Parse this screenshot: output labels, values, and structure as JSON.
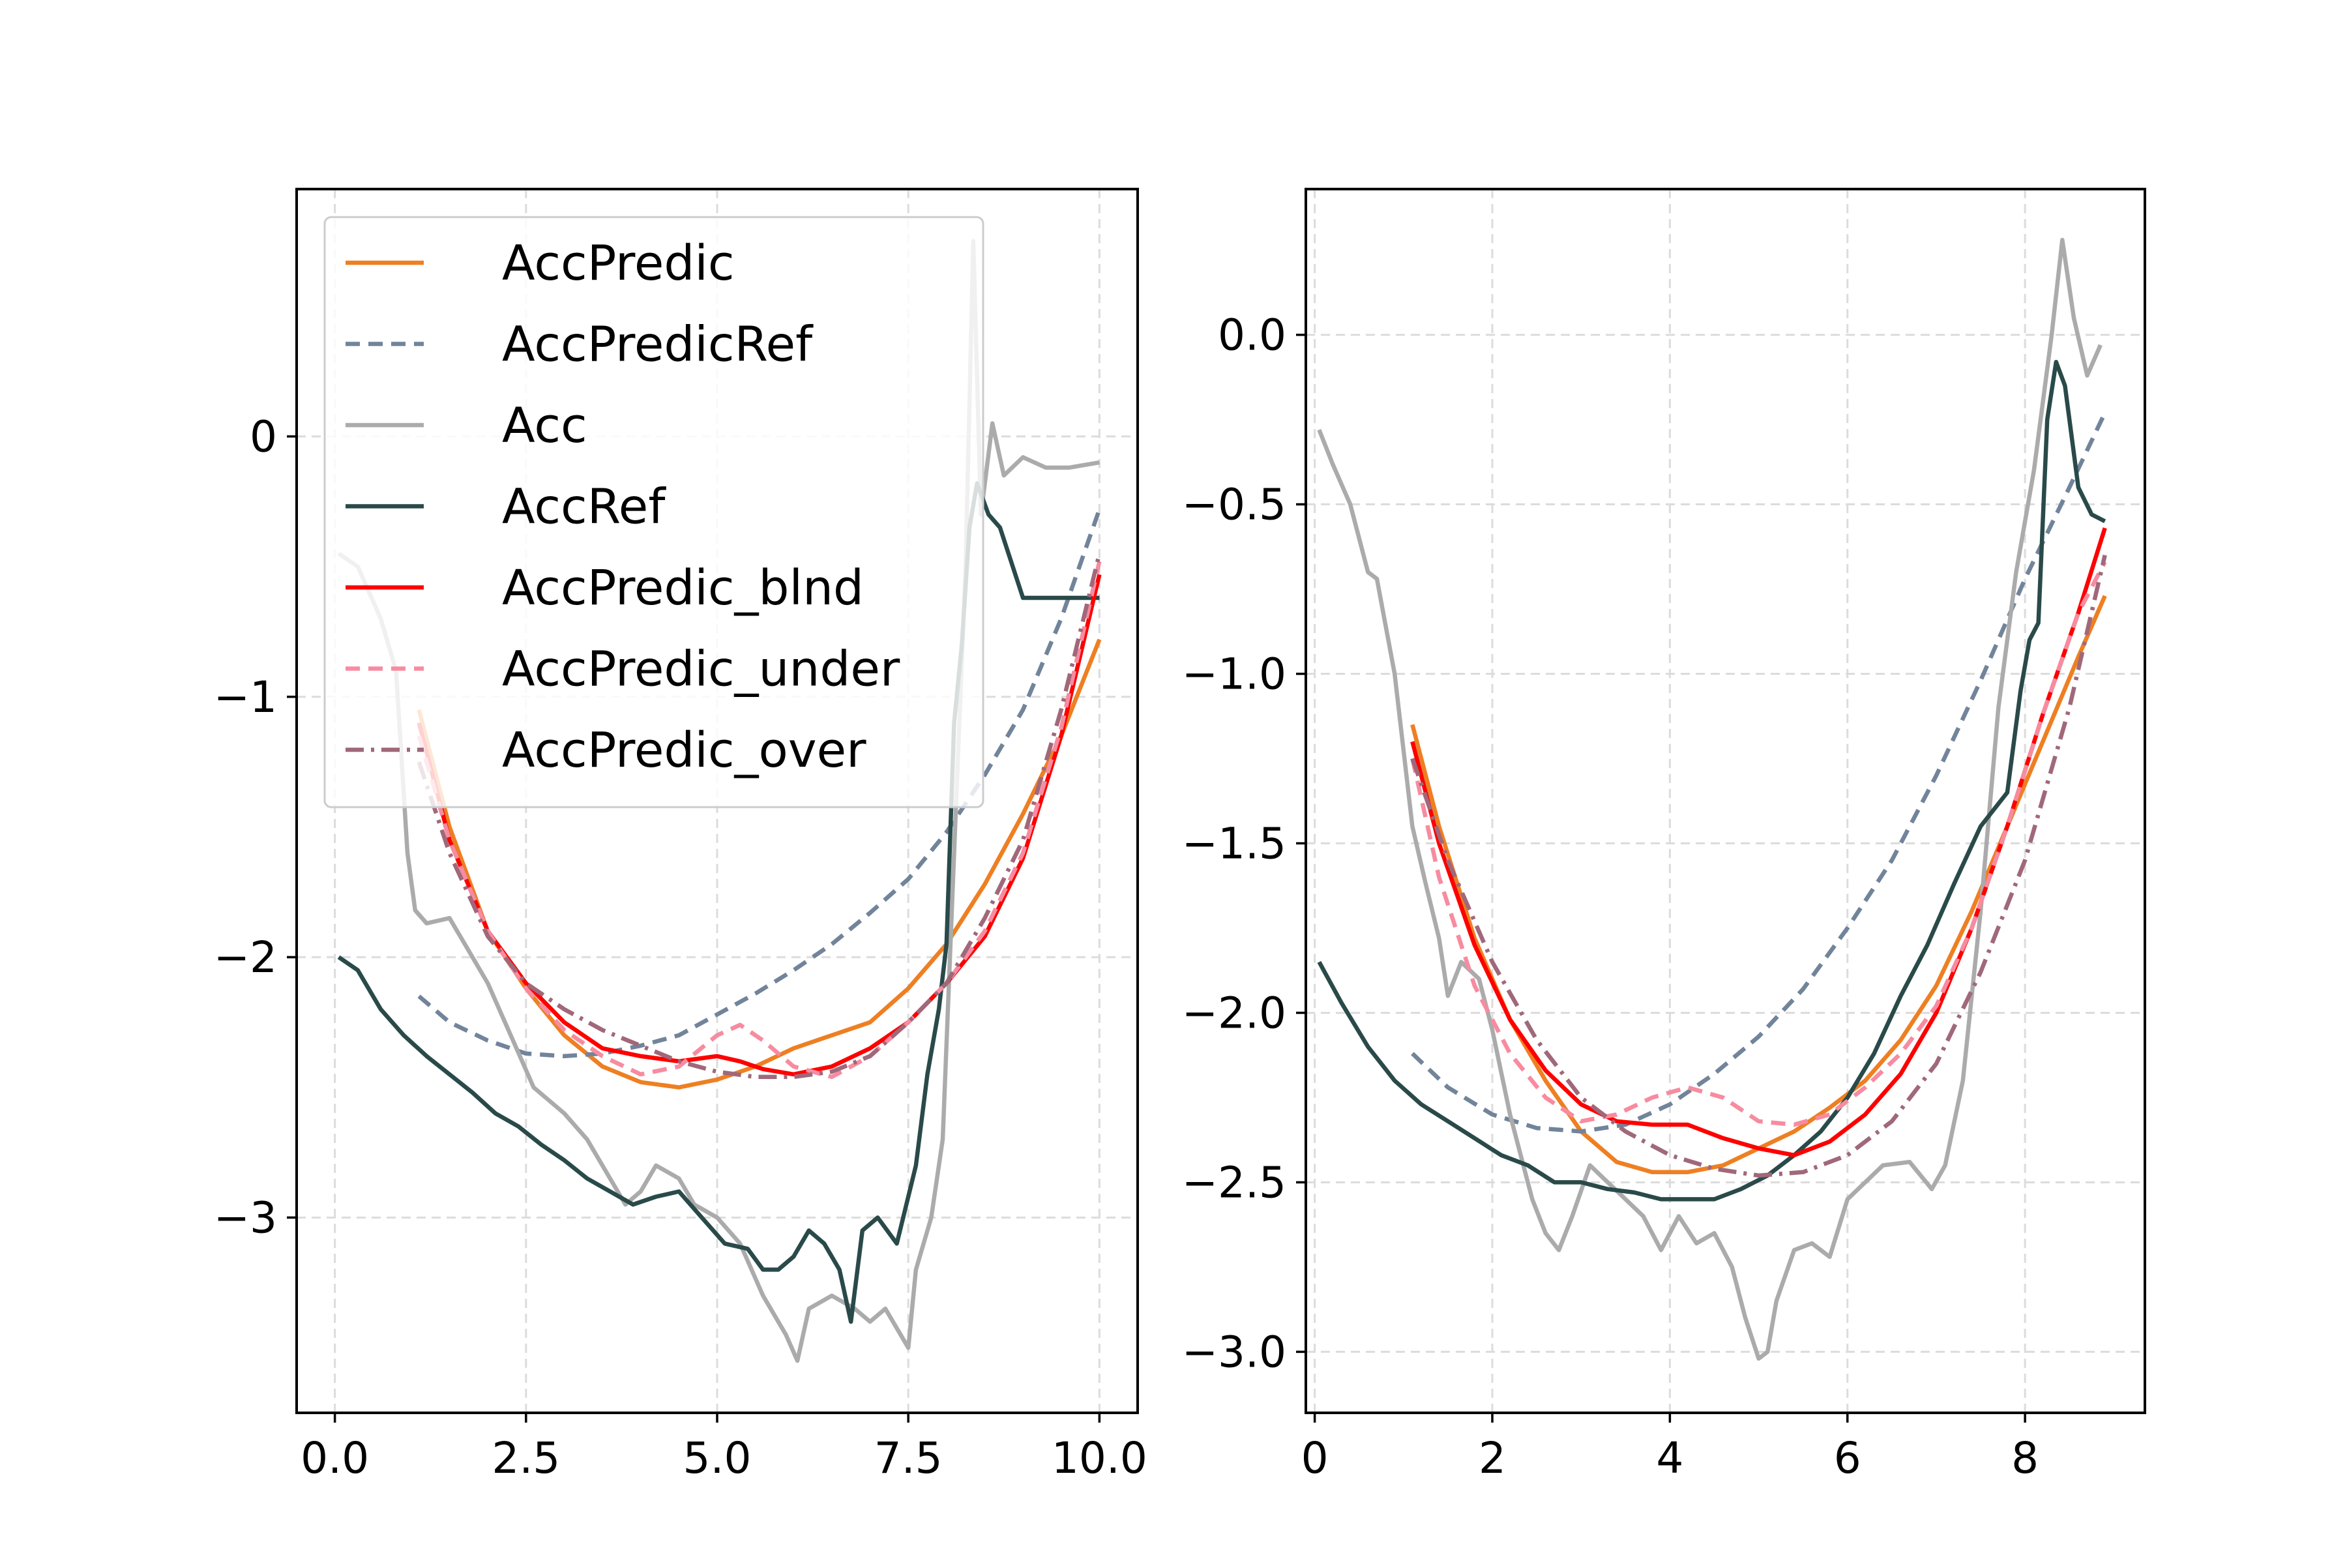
{
  "chart_data": [
    {
      "type": "line",
      "xlim": [
        -0.5,
        10.5
      ],
      "ylim": [
        -3.75,
        0.95
      ],
      "xticks": [
        0.0,
        2.5,
        5.0,
        7.5,
        10.0
      ],
      "xtick_labels": [
        "0.0",
        "2.5",
        "5.0",
        "7.5",
        "10.0"
      ],
      "yticks": [
        0,
        -1,
        -2,
        -3
      ],
      "ytick_labels": [
        "0",
        "−1",
        "−2",
        "−3"
      ],
      "grid": true,
      "legend": {
        "location": "top-left",
        "entries": [
          "AccPredic",
          "AccPredicRef",
          "Acc",
          "AccRef",
          "AccPredic_blnd",
          "AccPredic_under",
          "AccPredic_over"
        ]
      },
      "series": [
        {
          "name": "AccPredic",
          "color": "#ee7f22",
          "style": "solid",
          "x": [
            1.1,
            1.5,
            2.0,
            2.5,
            3.0,
            3.5,
            4.0,
            4.5,
            5.0,
            5.5,
            6.0,
            6.5,
            7.0,
            7.5,
            8.0,
            8.5,
            9.0,
            9.5,
            10.0
          ],
          "y": [
            -1.05,
            -1.5,
            -1.9,
            -2.12,
            -2.3,
            -2.42,
            -2.48,
            -2.5,
            -2.47,
            -2.42,
            -2.35,
            -2.3,
            -2.25,
            -2.12,
            -1.95,
            -1.72,
            -1.45,
            -1.15,
            -0.78
          ]
        },
        {
          "name": "AccPredicRef",
          "color": "#71849a",
          "style": "dashed",
          "x": [
            1.1,
            1.5,
            2.0,
            2.5,
            3.0,
            3.5,
            4.0,
            4.5,
            5.0,
            5.5,
            6.0,
            6.5,
            7.0,
            7.5,
            8.0,
            8.5,
            9.0,
            9.5,
            10.0
          ],
          "y": [
            -2.15,
            -2.25,
            -2.32,
            -2.37,
            -2.38,
            -2.37,
            -2.34,
            -2.3,
            -2.22,
            -2.14,
            -2.05,
            -1.95,
            -1.83,
            -1.7,
            -1.52,
            -1.3,
            -1.05,
            -0.7,
            -0.28
          ]
        },
        {
          "name": "Acc",
          "color": "#ababab",
          "style": "solid",
          "x": [
            0.05,
            0.3,
            0.6,
            0.8,
            0.95,
            1.05,
            1.2,
            1.5,
            1.7,
            2.0,
            2.3,
            2.6,
            3.0,
            3.3,
            3.6,
            3.8,
            4.0,
            4.2,
            4.5,
            4.7,
            5.0,
            5.3,
            5.6,
            5.9,
            6.05,
            6.2,
            6.5,
            6.8,
            7.0,
            7.2,
            7.5,
            7.6,
            7.8,
            7.95,
            8.1,
            8.25,
            8.35,
            8.45,
            8.6,
            8.75,
            9.0,
            9.3,
            9.6,
            10.0
          ],
          "y": [
            -0.45,
            -0.5,
            -0.7,
            -0.9,
            -1.6,
            -1.82,
            -1.87,
            -1.85,
            -1.95,
            -2.1,
            -2.3,
            -2.5,
            -2.6,
            -2.7,
            -2.85,
            -2.95,
            -2.9,
            -2.8,
            -2.85,
            -2.95,
            -3.0,
            -3.1,
            -3.3,
            -3.45,
            -3.55,
            -3.35,
            -3.3,
            -3.35,
            -3.4,
            -3.35,
            -3.5,
            -3.2,
            -3.0,
            -2.7,
            -1.6,
            -0.5,
            0.75,
            -0.3,
            0.05,
            -0.15,
            -0.08,
            -0.12,
            -0.12,
            -0.1
          ]
        },
        {
          "name": "AccRef",
          "color": "#2a4a4a",
          "style": "solid",
          "x": [
            0.05,
            0.3,
            0.6,
            0.9,
            1.2,
            1.5,
            1.8,
            2.1,
            2.4,
            2.7,
            3.0,
            3.3,
            3.6,
            3.9,
            4.2,
            4.5,
            4.8,
            5.1,
            5.4,
            5.6,
            5.8,
            6.0,
            6.2,
            6.4,
            6.6,
            6.75,
            6.9,
            7.1,
            7.35,
            7.6,
            7.75,
            7.9,
            8.0,
            8.1,
            8.2,
            8.3,
            8.4,
            8.55,
            8.7,
            9.0,
            9.5,
            10.0
          ],
          "y": [
            -2.0,
            -2.05,
            -2.2,
            -2.3,
            -2.38,
            -2.45,
            -2.52,
            -2.6,
            -2.65,
            -2.72,
            -2.78,
            -2.85,
            -2.9,
            -2.95,
            -2.92,
            -2.9,
            -3.0,
            -3.1,
            -3.12,
            -3.2,
            -3.2,
            -3.15,
            -3.05,
            -3.1,
            -3.2,
            -3.4,
            -3.05,
            -3.0,
            -3.1,
            -2.8,
            -2.45,
            -2.2,
            -1.95,
            -1.1,
            -0.8,
            -0.35,
            -0.18,
            -0.3,
            -0.35,
            -0.62,
            -0.62,
            -0.62
          ]
        },
        {
          "name": "AccPredic_blnd",
          "color": "#ff0000",
          "style": "solid",
          "x": [
            1.1,
            1.5,
            2.0,
            2.5,
            3.0,
            3.5,
            4.0,
            4.5,
            5.0,
            5.3,
            5.6,
            6.0,
            6.5,
            7.0,
            7.5,
            8.0,
            8.5,
            9.0,
            9.5,
            10.0
          ],
          "y": [
            -1.1,
            -1.55,
            -1.9,
            -2.1,
            -2.25,
            -2.35,
            -2.38,
            -2.4,
            -2.38,
            -2.4,
            -2.43,
            -2.45,
            -2.42,
            -2.35,
            -2.25,
            -2.1,
            -1.92,
            -1.62,
            -1.15,
            -0.53
          ]
        },
        {
          "name": "AccPredic_under",
          "color": "#f78ba0",
          "style": "dashed",
          "x": [
            1.1,
            1.5,
            2.0,
            2.5,
            3.0,
            3.5,
            4.0,
            4.5,
            5.0,
            5.3,
            5.6,
            6.0,
            6.5,
            7.0,
            7.5,
            8.0,
            8.5,
            9.0,
            9.5,
            10.0
          ],
          "y": [
            -1.15,
            -1.55,
            -1.9,
            -2.12,
            -2.28,
            -2.38,
            -2.45,
            -2.42,
            -2.3,
            -2.26,
            -2.32,
            -2.42,
            -2.46,
            -2.38,
            -2.25,
            -2.1,
            -1.9,
            -1.6,
            -1.12,
            -0.48
          ]
        },
        {
          "name": "AccPredic_over",
          "color": "#a0687a",
          "style": "dashdot",
          "x": [
            1.1,
            1.5,
            2.0,
            2.5,
            3.0,
            3.5,
            4.0,
            4.5,
            5.0,
            5.5,
            6.0,
            6.5,
            7.0,
            7.5,
            8.0,
            8.5,
            9.0,
            9.5,
            10.0
          ],
          "y": [
            -1.25,
            -1.6,
            -1.92,
            -2.1,
            -2.2,
            -2.28,
            -2.34,
            -2.4,
            -2.44,
            -2.46,
            -2.46,
            -2.44,
            -2.38,
            -2.25,
            -2.1,
            -1.85,
            -1.55,
            -1.05,
            -0.45
          ]
        }
      ]
    },
    {
      "type": "line",
      "xlim": [
        -0.1,
        9.35
      ],
      "ylim": [
        -3.18,
        0.43
      ],
      "xticks": [
        0,
        2,
        4,
        6,
        8
      ],
      "xtick_labels": [
        "0",
        "2",
        "4",
        "6",
        "8"
      ],
      "yticks": [
        0.0,
        -0.5,
        -1.0,
        -1.5,
        -2.0,
        -2.5,
        -3.0
      ],
      "ytick_labels": [
        "0.0",
        "−0.5",
        "−1.0",
        "−1.5",
        "−2.0",
        "−2.5",
        "−3.0"
      ],
      "grid": true,
      "series": [
        {
          "name": "AccPredic",
          "color": "#ee7f22",
          "style": "solid",
          "x": [
            1.1,
            1.4,
            1.8,
            2.2,
            2.6,
            3.0,
            3.4,
            3.8,
            4.2,
            4.6,
            5.0,
            5.4,
            5.8,
            6.2,
            6.6,
            7.0,
            7.4,
            7.8,
            8.2,
            8.6,
            8.9
          ],
          "y": [
            -1.15,
            -1.45,
            -1.78,
            -2.02,
            -2.2,
            -2.35,
            -2.44,
            -2.47,
            -2.47,
            -2.45,
            -2.4,
            -2.35,
            -2.28,
            -2.2,
            -2.08,
            -1.92,
            -1.7,
            -1.45,
            -1.2,
            -0.95,
            -0.77
          ]
        },
        {
          "name": "AccPredicRef",
          "color": "#71849a",
          "style": "dashed",
          "x": [
            1.1,
            1.5,
            2.0,
            2.5,
            3.0,
            3.5,
            4.0,
            4.5,
            5.0,
            5.5,
            6.0,
            6.5,
            7.0,
            7.5,
            8.0,
            8.5,
            8.9
          ],
          "y": [
            -2.12,
            -2.22,
            -2.3,
            -2.34,
            -2.35,
            -2.33,
            -2.27,
            -2.18,
            -2.07,
            -1.93,
            -1.75,
            -1.55,
            -1.3,
            -1.02,
            -0.72,
            -0.45,
            -0.23
          ]
        },
        {
          "name": "Acc",
          "color": "#ababab",
          "style": "solid",
          "x": [
            0.05,
            0.2,
            0.4,
            0.6,
            0.7,
            0.9,
            1.1,
            1.25,
            1.4,
            1.5,
            1.65,
            1.85,
            2.0,
            2.2,
            2.45,
            2.6,
            2.75,
            2.9,
            3.1,
            3.3,
            3.5,
            3.7,
            3.9,
            4.1,
            4.3,
            4.5,
            4.7,
            4.85,
            5.0,
            5.1,
            5.2,
            5.4,
            5.6,
            5.8,
            6.0,
            6.2,
            6.4,
            6.7,
            6.95,
            7.1,
            7.3,
            7.5,
            7.7,
            7.9,
            8.1,
            8.3,
            8.42,
            8.55,
            8.7,
            8.85
          ],
          "y": [
            -0.28,
            -0.38,
            -0.5,
            -0.7,
            -0.72,
            -1.0,
            -1.45,
            -1.62,
            -1.78,
            -1.95,
            -1.85,
            -1.9,
            -2.05,
            -2.3,
            -2.55,
            -2.65,
            -2.7,
            -2.6,
            -2.45,
            -2.5,
            -2.55,
            -2.6,
            -2.7,
            -2.6,
            -2.68,
            -2.65,
            -2.75,
            -2.9,
            -3.02,
            -3.0,
            -2.85,
            -2.7,
            -2.68,
            -2.72,
            -2.55,
            -2.5,
            -2.45,
            -2.44,
            -2.52,
            -2.45,
            -2.2,
            -1.7,
            -1.1,
            -0.7,
            -0.4,
            0.0,
            0.28,
            0.05,
            -0.12,
            -0.03
          ]
        },
        {
          "name": "AccRef",
          "color": "#2a4a4a",
          "style": "solid",
          "x": [
            0.05,
            0.3,
            0.6,
            0.9,
            1.2,
            1.5,
            1.8,
            2.1,
            2.4,
            2.7,
            3.0,
            3.3,
            3.6,
            3.9,
            4.2,
            4.5,
            4.8,
            5.1,
            5.4,
            5.7,
            6.0,
            6.3,
            6.6,
            6.9,
            7.2,
            7.5,
            7.8,
            7.95,
            8.05,
            8.15,
            8.25,
            8.35,
            8.45,
            8.6,
            8.75,
            8.9
          ],
          "y": [
            -1.85,
            -1.97,
            -2.1,
            -2.2,
            -2.27,
            -2.32,
            -2.37,
            -2.42,
            -2.45,
            -2.5,
            -2.5,
            -2.52,
            -2.53,
            -2.55,
            -2.55,
            -2.55,
            -2.52,
            -2.48,
            -2.42,
            -2.35,
            -2.25,
            -2.12,
            -1.95,
            -1.8,
            -1.62,
            -1.45,
            -1.35,
            -1.05,
            -0.9,
            -0.85,
            -0.25,
            -0.08,
            -0.15,
            -0.45,
            -0.53,
            -0.55
          ]
        },
        {
          "name": "AccPredic_blnd",
          "color": "#ff0000",
          "style": "solid",
          "x": [
            1.1,
            1.4,
            1.8,
            2.2,
            2.6,
            3.0,
            3.4,
            3.8,
            4.2,
            4.6,
            5.0,
            5.4,
            5.8,
            6.2,
            6.6,
            7.0,
            7.4,
            7.8,
            8.2,
            8.6,
            8.9
          ],
          "y": [
            -1.2,
            -1.5,
            -1.8,
            -2.02,
            -2.17,
            -2.27,
            -2.32,
            -2.33,
            -2.33,
            -2.37,
            -2.4,
            -2.42,
            -2.38,
            -2.3,
            -2.18,
            -2.0,
            -1.75,
            -1.45,
            -1.12,
            -0.82,
            -0.57
          ]
        },
        {
          "name": "AccPredic_under",
          "color": "#f78ba0",
          "style": "dashed",
          "x": [
            1.1,
            1.4,
            1.8,
            2.2,
            2.6,
            3.0,
            3.4,
            3.8,
            4.2,
            4.6,
            5.0,
            5.4,
            5.8,
            6.2,
            6.6,
            7.0,
            7.4,
            7.8,
            8.2,
            8.6,
            8.9
          ],
          "y": [
            -1.25,
            -1.6,
            -1.92,
            -2.12,
            -2.25,
            -2.32,
            -2.3,
            -2.25,
            -2.22,
            -2.25,
            -2.32,
            -2.33,
            -2.3,
            -2.22,
            -2.12,
            -1.98,
            -1.75,
            -1.45,
            -1.12,
            -0.82,
            -0.67
          ]
        },
        {
          "name": "AccPredic_over",
          "color": "#a0687a",
          "style": "dashdot",
          "x": [
            1.1,
            1.5,
            2.0,
            2.5,
            3.0,
            3.5,
            4.0,
            4.5,
            5.0,
            5.5,
            6.0,
            6.5,
            7.0,
            7.5,
            8.0,
            8.5,
            8.9
          ],
          "y": [
            -1.25,
            -1.55,
            -1.85,
            -2.08,
            -2.25,
            -2.35,
            -2.42,
            -2.46,
            -2.48,
            -2.47,
            -2.42,
            -2.32,
            -2.15,
            -1.88,
            -1.55,
            -1.1,
            -0.65
          ]
        }
      ]
    }
  ]
}
